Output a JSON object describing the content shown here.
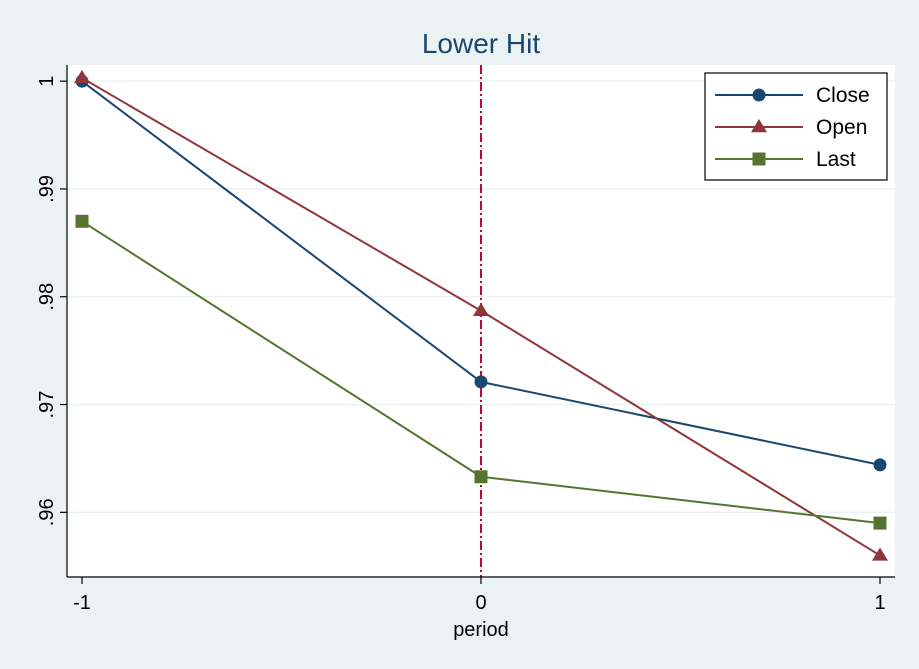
{
  "chart_data": {
    "type": "line",
    "title": "Lower Hit",
    "xlabel": "period",
    "ylabel": "",
    "x": [
      -1,
      0,
      1
    ],
    "x_ticks": [
      "-1",
      "0",
      "1"
    ],
    "xlim": [
      -1,
      1
    ],
    "ylim": [
      0.954,
      1.0015
    ],
    "y_ticks": [
      1,
      0.99,
      0.98,
      0.97,
      0.96
    ],
    "y_tick_labels": [
      "1",
      ".99",
      ".98",
      ".97",
      ".96"
    ],
    "reference_line": {
      "x": 0,
      "color": "#c10534",
      "style": "dash-dot"
    },
    "grid": true,
    "legend": "top-right",
    "series": [
      {
        "name": "Close",
        "values": [
          1.0,
          0.9721,
          0.9644
        ],
        "color": "#1a476f",
        "marker": "circle"
      },
      {
        "name": "Open",
        "values": [
          1.0003,
          0.9787,
          0.956
        ],
        "color": "#90353b",
        "marker": "triangle"
      },
      {
        "name": "Last",
        "values": [
          0.987,
          0.9633,
          0.959
        ],
        "color": "#55752f",
        "marker": "square"
      }
    ]
  }
}
